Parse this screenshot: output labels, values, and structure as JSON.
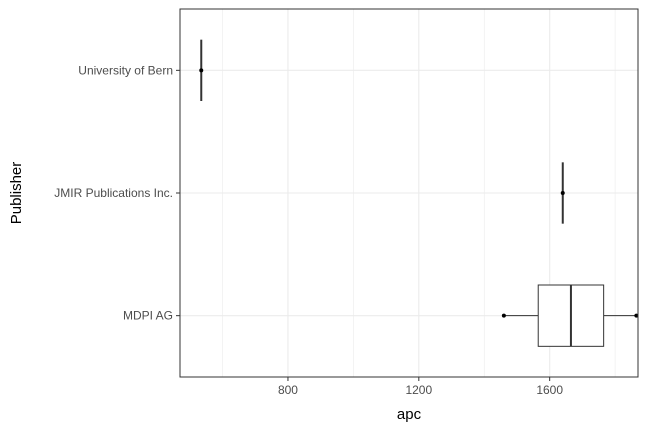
{
  "chart_data": {
    "type": "boxplot",
    "orientation": "horizontal",
    "xlabel": "apc",
    "ylabel": "Publisher",
    "xlim": [
      470,
      1870
    ],
    "x_ticks": [
      800,
      1200,
      1600
    ],
    "x_minor_ticks": [
      600,
      1000,
      1400,
      1800
    ],
    "grid": true,
    "categories": [
      "University of Bern",
      "JMIR Publications Inc.",
      "MDPI AG"
    ],
    "boxes": [
      {
        "category": "University of Bern",
        "whisker_low": 535,
        "q1": 535,
        "median": 535,
        "q3": 535,
        "whisker_high": 535,
        "outliers": []
      },
      {
        "category": "JMIR Publications Inc.",
        "whisker_low": 1640,
        "q1": 1640,
        "median": 1640,
        "q3": 1640,
        "whisker_high": 1640,
        "outliers": []
      },
      {
        "category": "MDPI AG",
        "whisker_low": 1460,
        "q1": 1565,
        "median": 1665,
        "q3": 1765,
        "whisker_high": 1865,
        "outliers": []
      }
    ],
    "points": [
      {
        "category": "University of Bern",
        "x": 535
      },
      {
        "category": "JMIR Publications Inc.",
        "x": 1640
      },
      {
        "category": "MDPI AG",
        "x": 1460
      },
      {
        "category": "MDPI AG",
        "x": 1865
      }
    ],
    "colors": {
      "panel_border": "#333333",
      "grid": "#ebebeb",
      "box_fill": "#ffffff",
      "box_line": "#333333",
      "point": "#000000"
    }
  }
}
